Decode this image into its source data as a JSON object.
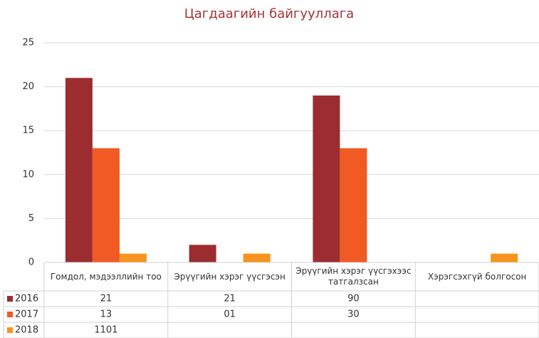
{
  "chart_data": {
    "type": "bar",
    "title": "Цагдаагийн байгууллага",
    "categories": [
      "Гомдол, мэдээллийн тоо",
      "Эрүүгийн хэрэг үүсгэсэн",
      "Эрүүгийн хэрэг үүсгэхээс татгалзсан",
      "Хэрэгсэхгүй болгосон"
    ],
    "series": [
      {
        "name": "2016",
        "color": "#9b2d30",
        "values": [
          21,
          2,
          19,
          0
        ]
      },
      {
        "name": "2017",
        "color": "#f15a22",
        "values": [
          13,
          0,
          13,
          0
        ]
      },
      {
        "name": "2018",
        "color": "#f7941d",
        "values": [
          1,
          1,
          0,
          1
        ]
      }
    ],
    "table": [
      [
        "21",
        "21",
        "90"
      ],
      [
        "13",
        "01",
        "30"
      ],
      [
        "1101"
      ]
    ],
    "ylim": [
      0,
      25
    ],
    "yticks": [
      0,
      5,
      10,
      15,
      20,
      25
    ],
    "grid": true
  }
}
